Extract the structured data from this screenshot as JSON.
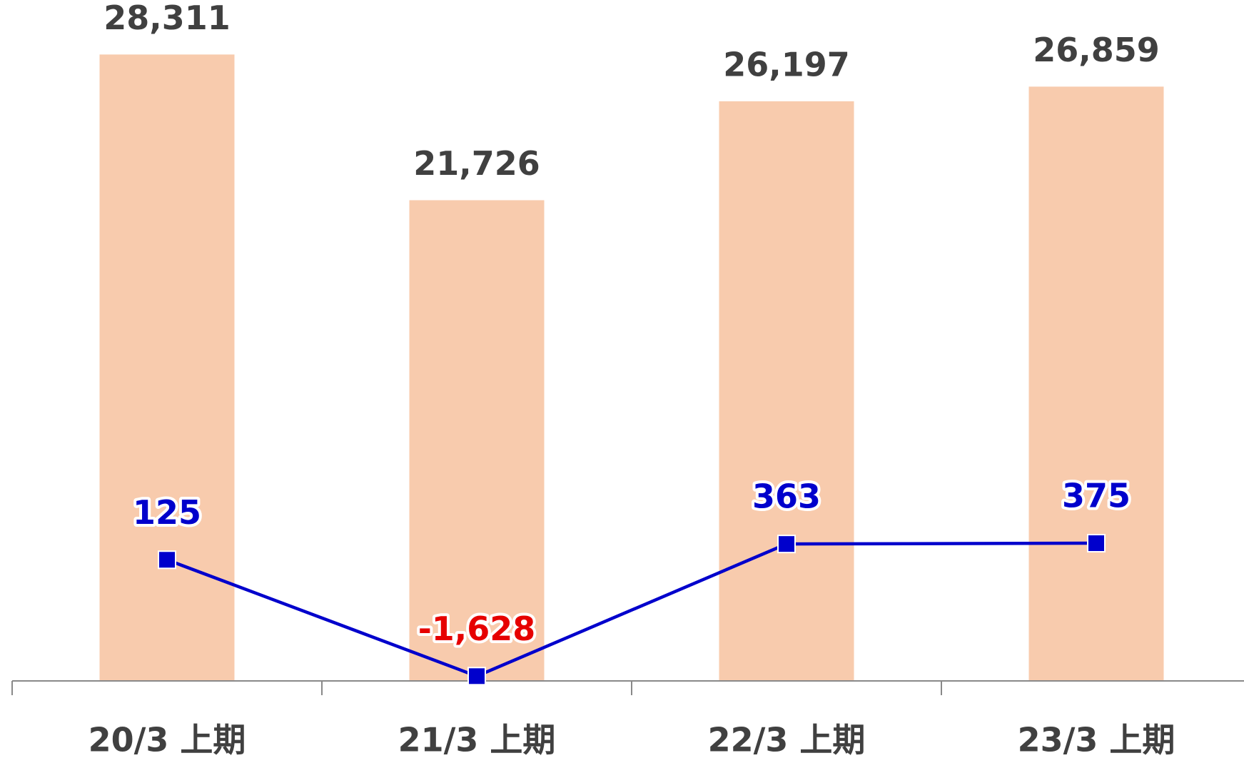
{
  "chart_data": {
    "type": "bar-line",
    "categories": [
      "20/3 上期",
      "21/3 上期",
      "22/3 上期",
      "23/3 上期"
    ],
    "series": [
      {
        "name": null,
        "type": "bar",
        "color": "#f8cbad",
        "label_color": "#404040",
        "values": [
          28311,
          21726,
          26197,
          26859
        ],
        "value_labels": [
          "28,311",
          "21,726",
          "26,197",
          "26,859"
        ]
      },
      {
        "name": null,
        "type": "line",
        "axis": "y2",
        "color": "#0000cc",
        "label_color": "#0000cc",
        "negative_label_color": "#e60000",
        "values": [
          125,
          -1628,
          363,
          375
        ],
        "value_labels": [
          "125",
          "-1,628",
          "363",
          "375"
        ]
      }
    ],
    "ylim": [
      0,
      30000
    ],
    "y2lim": [
      -1700,
      8300
    ]
  }
}
